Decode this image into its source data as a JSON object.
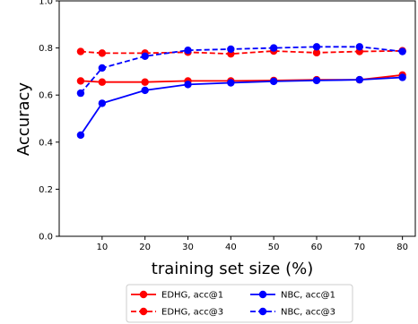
{
  "chart_data": {
    "type": "line",
    "xlabel": "training set size (%)",
    "ylabel": "Accuracy",
    "x": [
      5,
      10,
      20,
      30,
      40,
      50,
      60,
      70,
      80
    ],
    "xticks": [
      10,
      20,
      30,
      40,
      50,
      60,
      70,
      80
    ],
    "xlim": [
      0,
      83
    ],
    "yticks": [
      0.0,
      0.2,
      0.4,
      0.6,
      0.8,
      1.0
    ],
    "ytick_labels": [
      "0.0",
      "0.2",
      "0.4",
      "0.6",
      "0.8",
      "1.0"
    ],
    "ylim": [
      0.0,
      1.0
    ],
    "grid": false,
    "legend_position": "bottom-center, below plot, 2 columns",
    "series": [
      {
        "name": "EDHG, acc@1",
        "color": "#ff0000",
        "style": "solid",
        "values": [
          0.66,
          0.655,
          0.655,
          0.66,
          0.66,
          0.662,
          0.665,
          0.665,
          0.685
        ]
      },
      {
        "name": "EDHG, acc@3",
        "color": "#ff0000",
        "style": "dashed",
        "values": [
          0.785,
          0.778,
          0.778,
          0.782,
          0.775,
          0.787,
          0.78,
          0.785,
          0.788
        ]
      },
      {
        "name": "NBC, acc@1",
        "color": "#0000ff",
        "style": "solid",
        "values": [
          0.43,
          0.565,
          0.62,
          0.645,
          0.652,
          0.658,
          0.662,
          0.665,
          0.675
        ]
      },
      {
        "name": "NBC, acc@3",
        "color": "#0000ff",
        "style": "dashed",
        "values": [
          0.608,
          0.715,
          0.765,
          0.79,
          0.795,
          0.8,
          0.805,
          0.805,
          0.785
        ]
      }
    ]
  }
}
